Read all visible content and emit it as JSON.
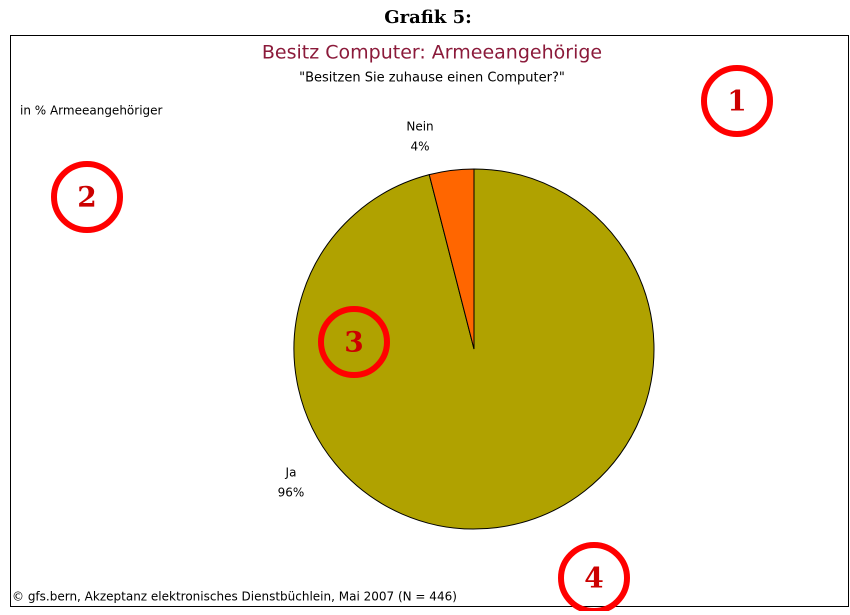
{
  "heading": "Grafik 5:",
  "chart_data": {
    "type": "pie",
    "title": "Besitz Computer: Armeeangehörige",
    "subtitle": "\"Besitzen Sie zuhause einen Computer?\"",
    "unit_label": "in % Armeeangehöriger",
    "categories": [
      "Ja",
      "Nein"
    ],
    "values": [
      96,
      4
    ],
    "value_labels": [
      "96%",
      "4%"
    ],
    "colors": [
      "#b0a200",
      "#ff6600"
    ],
    "source": "© gfs.bern, Akzeptanz elektronisches Dienstbüchlein, Mai 2007 (N = 446)",
    "annotations": [
      "1",
      "2",
      "3",
      "4"
    ]
  }
}
